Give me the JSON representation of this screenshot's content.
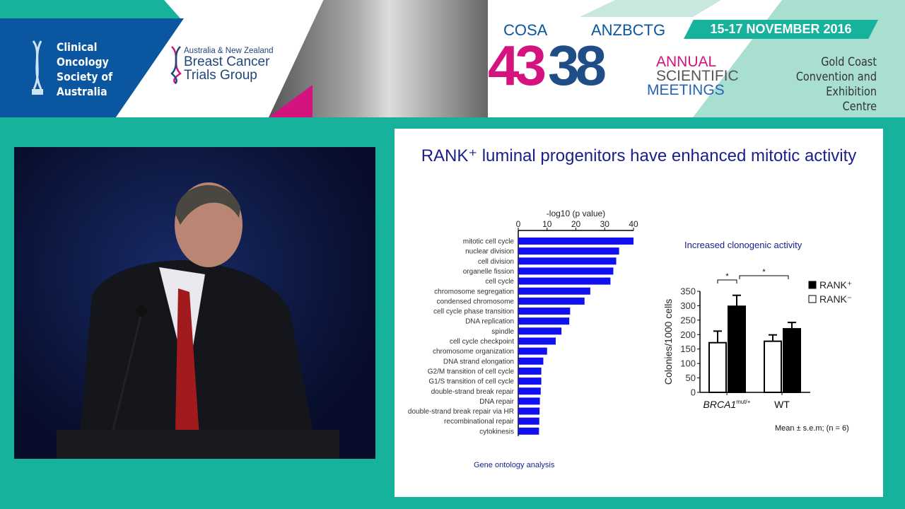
{
  "banner": {
    "org1": "Clinical Oncology Society of Australia",
    "org1_lines": [
      "Clinical",
      "Oncology",
      "Society of",
      "Australia"
    ],
    "org2_small": "Australia & New Zealand",
    "org2_lines": [
      "Breast Cancer",
      "Trials Group"
    ],
    "cosa": "COSA",
    "anzbctg": "ANZBCTG",
    "num1": "43",
    "num2": "38",
    "annual": "ANNUAL",
    "scientific": "SCIENTIFIC",
    "meetings": "MEETINGS",
    "date": "15-17 NOVEMBER 2016",
    "venue_lines": [
      "Gold Coast",
      "Convention and",
      "Exhibition Centre"
    ],
    "colors": {
      "teal": "#16b29c",
      "blue": "#0a56a0",
      "pink": "#d4137f",
      "mint": "#a9dfd0"
    }
  },
  "slide": {
    "title": "RANK⁺ luminal progenitors have enhanced mitotic activity",
    "caption_left": "Gene ontology analysis",
    "subtitle_right": "Increased clonogenic activity",
    "note": "Mean ± s.e.m; (n = 6)"
  },
  "chart_data": [
    {
      "type": "bar",
      "orientation": "horizontal",
      "xlabel": "-log10 (p value)",
      "xlim": [
        0,
        40
      ],
      "xticks": [
        0,
        10,
        20,
        30,
        40
      ],
      "color": "#1010f0",
      "categories": [
        "mitotic cell cycle",
        "nuclear division",
        "cell division",
        "organelle fission",
        "cell cycle",
        "chromosome segregation",
        "condensed chromosome",
        "cell cycle phase transition",
        "DNA replication",
        "spindle",
        "cell cycle checkpoint",
        "chromosome organization",
        "DNA strand elongation",
        "G2/M transition of cell cycle",
        "G1/S transition of cell cycle",
        "double-strand break repair",
        "DNA repair",
        "double-strand break repair via HR",
        "recombinational repair",
        "cytokinesis"
      ],
      "values": [
        40,
        35,
        34,
        33,
        32,
        25,
        23,
        18,
        17.7,
        15,
        13,
        10,
        8.7,
        8,
        8,
        7.8,
        7.5,
        7.4,
        7.3,
        7.2
      ]
    },
    {
      "type": "bar",
      "title": "Increased clonogenic activity",
      "ylabel": "Colonies/1000 cells",
      "ylim": [
        0,
        350
      ],
      "yticks": [
        0,
        50,
        100,
        150,
        200,
        250,
        300,
        350
      ],
      "categories": [
        {
          "main": "BRCA1",
          "sup": "mut/+"
        },
        {
          "main": "WT",
          "sup": ""
        }
      ],
      "series": [
        {
          "name": "RANK⁻",
          "fill": "#ffffff",
          "values": [
            172,
            177
          ],
          "errors": [
            40,
            22
          ]
        },
        {
          "name": "RANK⁺",
          "fill": "#000000",
          "values": [
            298,
            220
          ],
          "errors": [
            38,
            22
          ]
        }
      ],
      "significance": [
        "*",
        "*"
      ]
    }
  ]
}
